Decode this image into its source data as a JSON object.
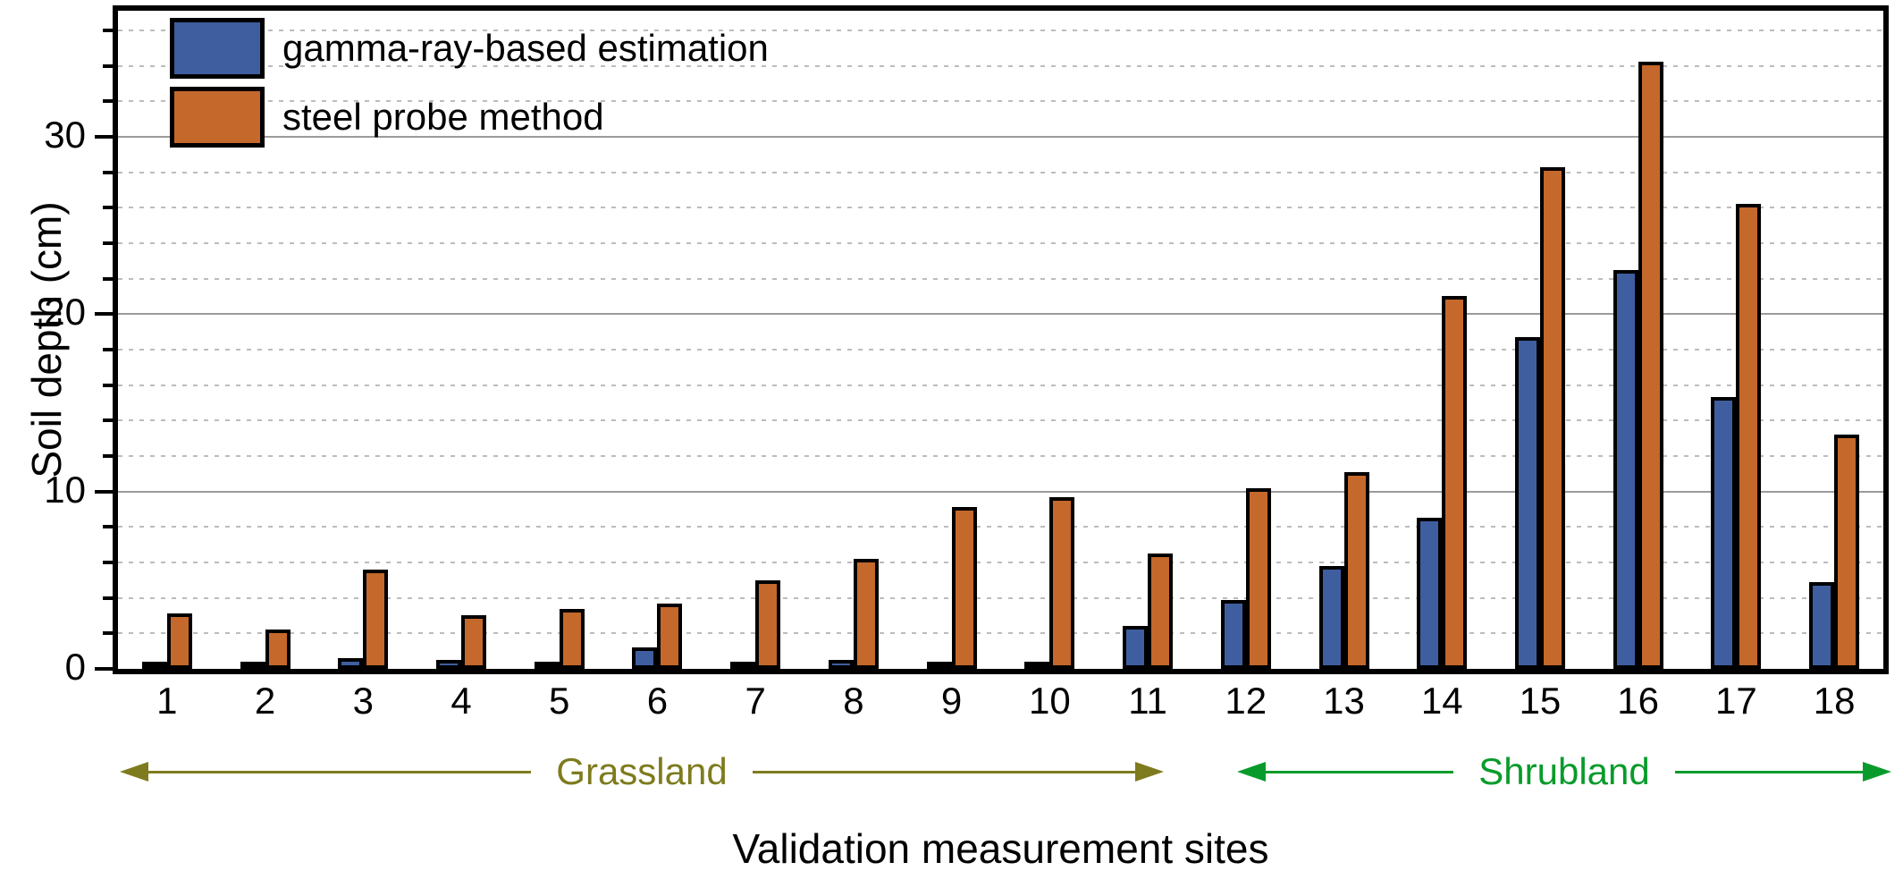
{
  "figure": {
    "background": "#ffffff"
  },
  "axes": {
    "ylabel": "Soil depth (cm)",
    "xlabel": "Validation measurement sites"
  },
  "annotations": [
    {
      "id": "grassland",
      "label": "Grassland",
      "color": "#7E7B1E",
      "covers_sites": "1-11"
    },
    {
      "id": "shrubland",
      "label": "Shrubland",
      "color": "#089B2B",
      "covers_sites": "12-18"
    }
  ],
  "chart_data": {
    "type": "bar",
    "title": "",
    "xlabel": "Validation measurement sites",
    "ylabel": "Soil depth (cm)",
    "categories": [
      "1",
      "2",
      "3",
      "4",
      "5",
      "6",
      "7",
      "8",
      "9",
      "10",
      "11",
      "12",
      "13",
      "14",
      "15",
      "16",
      "17",
      "18"
    ],
    "series": [
      {
        "name": "gamma-ray-based estimation",
        "color": "#3F5E9F",
        "values": [
          0.1,
          0.1,
          0.4,
          0.3,
          0.2,
          1.0,
          0.2,
          0.3,
          0.2,
          0.2,
          2.2,
          3.7,
          5.6,
          8.3,
          18.5,
          22.3,
          15.1,
          4.7
        ]
      },
      {
        "name": "steel probe method",
        "color": "#C4682B",
        "values": [
          2.9,
          2.0,
          5.4,
          2.8,
          3.2,
          3.5,
          4.8,
          6.0,
          8.9,
          9.5,
          6.3,
          10.0,
          10.9,
          20.8,
          28.1,
          34.0,
          26.0,
          13.0
        ]
      }
    ],
    "ylim": [
      0,
      37.1
    ],
    "yticks": [
      0,
      10,
      20,
      30
    ],
    "minor_tick_step": 2,
    "major_tick_step": 10,
    "grid": {
      "major": "solid-gray",
      "minor": "dotted-light-gray"
    },
    "legend_position": "top-left-inside",
    "site_groups": [
      {
        "label": "Grassland",
        "from_site": 1,
        "to_site": 11
      },
      {
        "label": "Shrubland",
        "from_site": 12,
        "to_site": 18
      }
    ],
    "bar_outline_color": "#000000",
    "gridline_major_color": "#9b9b9b",
    "gridline_minor_color": "#bcbcbc"
  }
}
